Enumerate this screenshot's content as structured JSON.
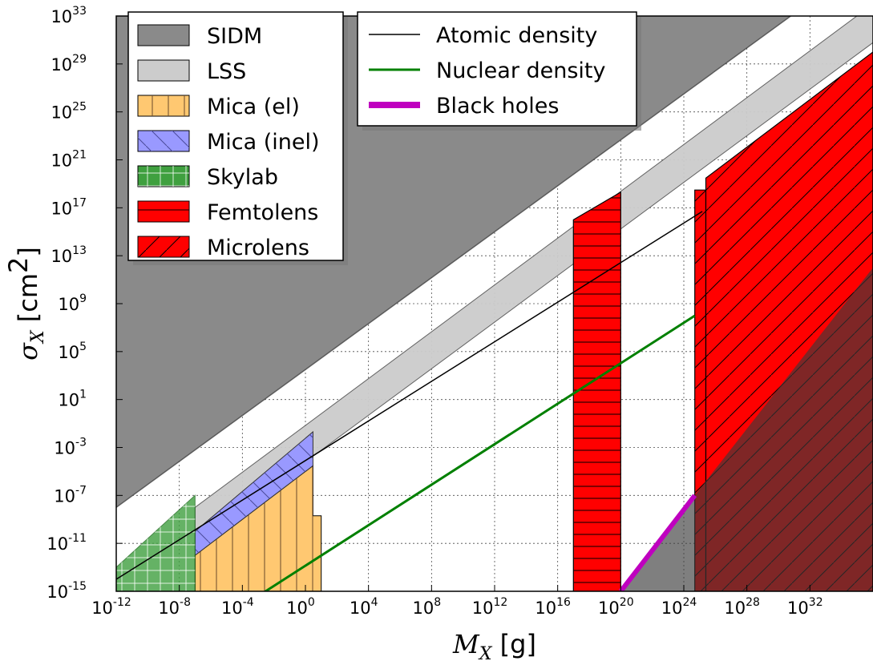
{
  "chart_data": {
    "type": "area",
    "x_scale": "log",
    "y_scale": "log",
    "xlim": [
      1e-12,
      1e+36
    ],
    "ylim": [
      1e-15,
      1e+33
    ],
    "grid": true,
    "x_ticks": [
      {
        "base": "10",
        "exp": "-12"
      },
      {
        "base": "10",
        "exp": "-8"
      },
      {
        "base": "10",
        "exp": "-4"
      },
      {
        "base": "10",
        "exp": "0"
      },
      {
        "base": "10",
        "exp": "4"
      },
      {
        "base": "10",
        "exp": "8"
      },
      {
        "base": "10",
        "exp": "12"
      },
      {
        "base": "10",
        "exp": "16"
      },
      {
        "base": "10",
        "exp": "20"
      },
      {
        "base": "10",
        "exp": "24"
      },
      {
        "base": "10",
        "exp": "28"
      },
      {
        "base": "10",
        "exp": "32"
      }
    ],
    "y_ticks": [
      {
        "base": "10",
        "exp": "-15"
      },
      {
        "base": "10",
        "exp": "-11"
      },
      {
        "base": "10",
        "exp": "-7"
      },
      {
        "base": "10",
        "exp": "-3"
      },
      {
        "base": "10",
        "exp": "1"
      },
      {
        "base": "10",
        "exp": "5"
      },
      {
        "base": "10",
        "exp": "9"
      },
      {
        "base": "10",
        "exp": "13"
      },
      {
        "base": "10",
        "exp": "17"
      },
      {
        "base": "10",
        "exp": "21"
      },
      {
        "base": "10",
        "exp": "25"
      },
      {
        "base": "10",
        "exp": "29"
      },
      {
        "base": "10",
        "exp": "33"
      }
    ],
    "xlabel": {
      "symbol": "M",
      "subscript": "X",
      "unit": "[g]"
    },
    "ylabel": {
      "symbol": "σ",
      "subscript": "X",
      "unit": "[cm",
      "unit_sup": "2",
      "unit_end": "]"
    },
    "legend_left": [
      {
        "label": "SIDM",
        "fill": "#8a8a8a",
        "hatch": "none"
      },
      {
        "label": "LSS",
        "fill": "#cccccc",
        "hatch": "none"
      },
      {
        "label": "Mica (el)",
        "fill": "#ffc871",
        "hatch": "vertical"
      },
      {
        "label": "Mica (inel)",
        "fill": "#9999ff",
        "hatch": "diagonal-back"
      },
      {
        "label": "Skylab",
        "fill": "#3fa03f",
        "hatch": "grid"
      },
      {
        "label": "Femtolens",
        "fill": "#ff0000",
        "hatch": "horizontal"
      },
      {
        "label": "Microlens",
        "fill": "#ff0000",
        "hatch": "diagonal"
      }
    ],
    "legend_right": [
      {
        "label": "Atomic density",
        "color": "#000000",
        "width": "thin"
      },
      {
        "label": "Nuclear density",
        "color": "#008000",
        "width": "medium"
      },
      {
        "label": "Black holes",
        "color": "#bf00bf",
        "width": "thick"
      }
    ],
    "series": [
      {
        "name": "SIDM",
        "kind": "region",
        "color": "#8a8a8a",
        "boundary_x": [
          1e-12,
          1e+36
        ],
        "boundary_y": [
          1e-08,
          1e+38
        ]
      },
      {
        "name": "LSS",
        "kind": "band",
        "color": "#cccccc",
        "lower_x": [
          1e-07,
          1e+36
        ],
        "lower_y": [
          1e-11,
          6e+30
        ],
        "upper_x": [
          1e-07,
          1e+36
        ],
        "upper_y": [
          1e-08,
          1e+34
        ]
      },
      {
        "name": "Mica (el)",
        "kind": "region",
        "color": "#ffc871",
        "x": [
          1e-07,
          3.0
        ],
        "y_bottom": [
          1e-15,
          1e-15
        ],
        "y_top": [
          1e-12,
          3e-05
        ],
        "notch_x": [
          3.0,
          10.0
        ],
        "notch_y": [
          2e-09,
          2e-09
        ]
      },
      {
        "name": "Mica (inel)",
        "kind": "region",
        "color": "#9999ff",
        "x": [
          1e-07,
          3.0
        ],
        "y_bottom": [
          1e-12,
          3e-05
        ],
        "y_top": [
          1e-10,
          0.02
        ]
      },
      {
        "name": "Skylab",
        "kind": "region",
        "color": "#3fa03f",
        "x": [
          1e-12,
          1e-07
        ],
        "y_bottom": [
          1e-15,
          1e-15
        ],
        "y_top": [
          1e-13,
          1e-07
        ]
      },
      {
        "name": "Femtolens",
        "kind": "region",
        "color": "#ff0000",
        "x": [
          1e+17,
          1e+20
        ],
        "y_bottom": [
          1e-15,
          1e-15
        ],
        "y_top": [
          1e+16,
          2e+18
        ]
      },
      {
        "name": "Microlens",
        "kind": "region",
        "color": "#ff0000",
        "x": [
          2.5e+25,
          1e+36
        ],
        "y_bottom": [
          1e-15,
          1e-15
        ],
        "y_top": [
          3e+19,
          1e+30
        ],
        "bump_x": [
          2.5e+25,
          2.5e+25,
          5e+24,
          5e+24
        ],
        "bump_y": [
          1e-15,
          3e+18,
          3e+18,
          1e-15
        ]
      },
      {
        "name": "Atomic density",
        "kind": "line",
        "color": "#000000",
        "x": [
          1e-12,
          1.5e+25
        ],
        "y": [
          1e-14,
          5e+16
        ]
      },
      {
        "name": "Nuclear density",
        "kind": "line",
        "color": "#008000",
        "x": [
          1e-12,
          5e+24
        ],
        "y": [
          1e-23,
          100000000.0
        ]
      },
      {
        "name": "Black holes",
        "kind": "line",
        "color": "#bf00bf",
        "x": [
          1e+20,
          5e+24
        ],
        "y": [
          1e-15,
          1e-07
        ]
      }
    ]
  }
}
